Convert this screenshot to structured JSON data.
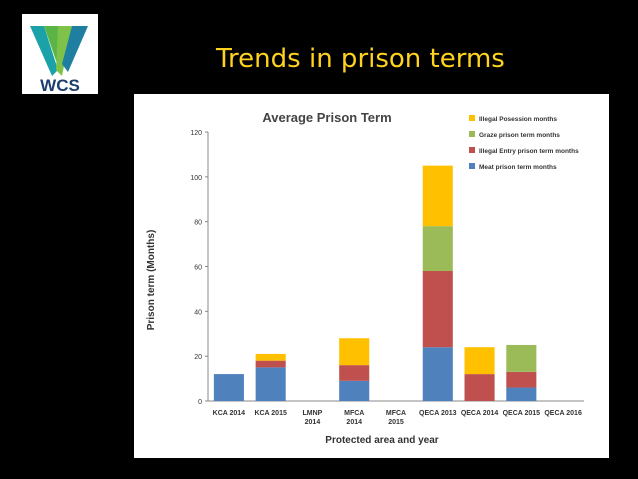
{
  "slide": {
    "title": "Trends in prison terms"
  },
  "logo": {
    "text": "WCS",
    "colors": {
      "dark_blue": "#1e3f6e",
      "teal": "#1aa2a8",
      "green": "#5bb446"
    }
  },
  "chart_data": {
    "type": "bar",
    "stacked": true,
    "title": "Average Prison Term",
    "xlabel": "Protected area and year",
    "ylabel": "Prison term (Months)",
    "ylim": [
      0,
      120
    ],
    "yticks": [
      0,
      20,
      40,
      60,
      80,
      100,
      120
    ],
    "grid": false,
    "legend_position": "top-right",
    "categories": [
      [
        "KCA 2014"
      ],
      [
        "KCA 2015"
      ],
      [
        "LMNP",
        "2014"
      ],
      [
        "MFCA",
        "2014"
      ],
      [
        "MFCA",
        "2015"
      ],
      [
        "QECA 2013"
      ],
      [
        "QECA 2014"
      ],
      [
        "QECA 2015"
      ],
      [
        "QECA 2016"
      ]
    ],
    "series": [
      {
        "name": "Meat prison term months",
        "color": "#4f81bd",
        "values": [
          12,
          15,
          0,
          9,
          0,
          24,
          0,
          6,
          0
        ]
      },
      {
        "name": "Illegal Entry prison term months",
        "color": "#c0504d",
        "values": [
          0,
          3,
          0,
          7,
          0,
          34,
          12,
          7,
          0
        ]
      },
      {
        "name": "Graze prison term months",
        "color": "#9bbb59",
        "values": [
          0,
          0,
          0,
          0,
          0,
          20,
          0,
          12,
          0
        ]
      },
      {
        "name": "Illegal Posession months",
        "color": "#ffc000",
        "values": [
          0,
          3,
          0,
          12,
          0,
          27,
          12,
          0,
          0
        ]
      }
    ],
    "legend_order": [
      3,
      2,
      1,
      0
    ]
  }
}
